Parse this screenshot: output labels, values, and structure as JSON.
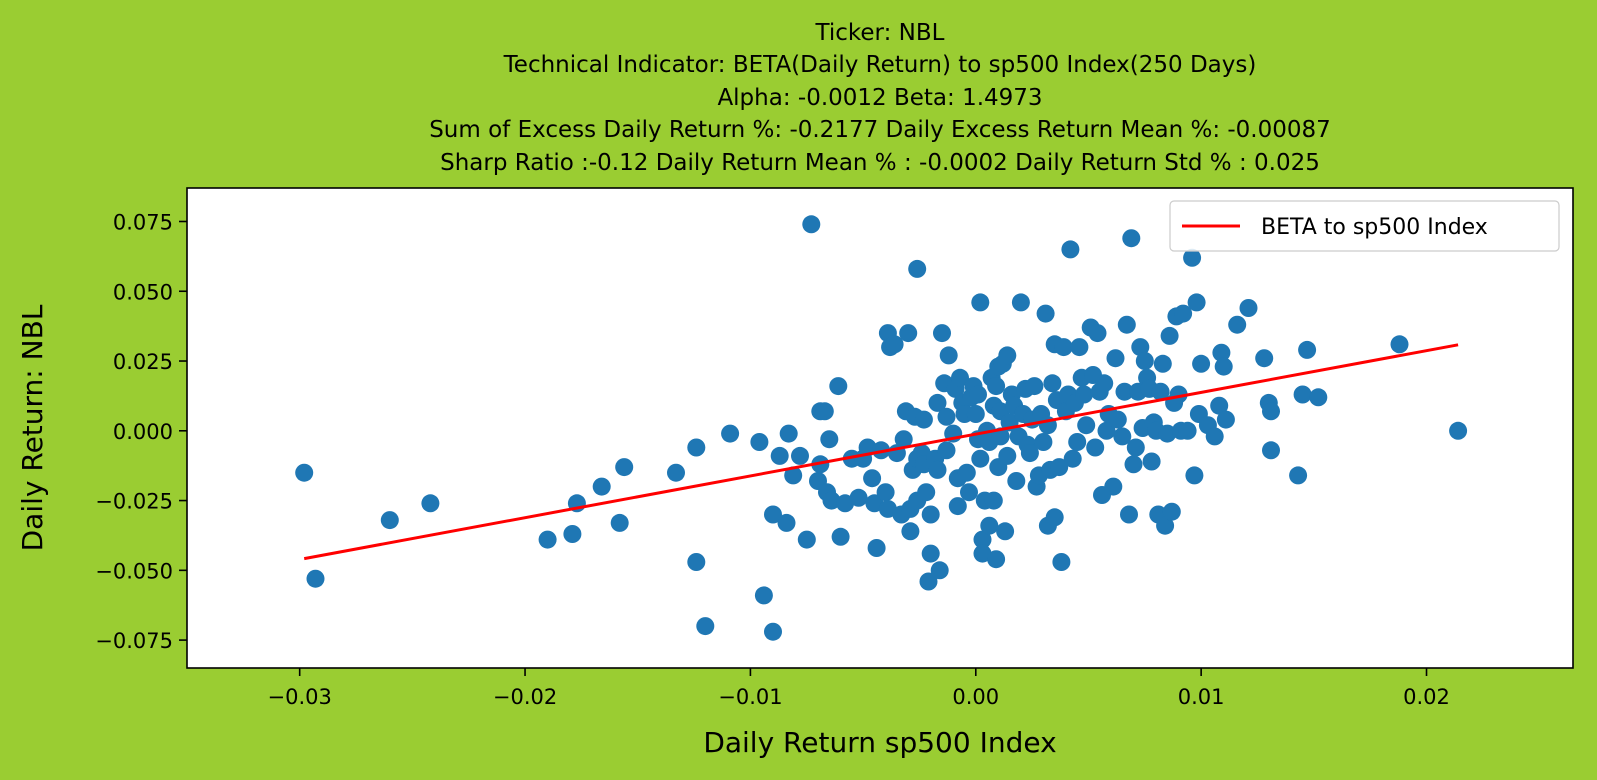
{
  "chart_data": {
    "type": "scatter",
    "title_lines": [
      "Ticker: NBL",
      "Technical Indicator: BETA(Daily Return) to sp500 Index(250 Days)",
      "Alpha: -0.0012   Beta: 1.4973",
      "Sum of Excess Daily Return %: -0.2177   Daily Excess Return Mean %: -0.00087",
      "Sharp Ratio :-0.12    Daily Return Mean % : -0.0002    Daily Return Std % : 0.025"
    ],
    "xlabel": "Daily Return sp500 Index",
    "ylabel": "Daily Return: NBL",
    "xlim": [
      -0.035,
      0.0265
    ],
    "ylim": [
      -0.085,
      0.087
    ],
    "xticks": [
      -0.03,
      -0.02,
      -0.01,
      0.0,
      0.01,
      0.02
    ],
    "xtick_labels": [
      "−0.03",
      "−0.02",
      "−0.01",
      "0.00",
      "0.01",
      "0.02"
    ],
    "yticks": [
      0.075,
      0.05,
      0.025,
      0.0,
      -0.025,
      -0.05,
      -0.075
    ],
    "ytick_labels": [
      "0.075",
      "0.050",
      "0.025",
      "0.000",
      "−0.025",
      "−0.050",
      "−0.075"
    ],
    "legend": {
      "label": "BETA to sp500 Index",
      "position": "upper right"
    },
    "colors": {
      "background": "#9acd32",
      "points": "#1f77b4",
      "line": "#ff0000",
      "plot_area": "#ffffff"
    },
    "scatter_series": {
      "name": "",
      "points": [
        [
          -0.0298,
          -0.015
        ],
        [
          -0.0293,
          -0.053
        ],
        [
          -0.026,
          -0.032
        ],
        [
          -0.0242,
          -0.026
        ],
        [
          -0.019,
          -0.039
        ],
        [
          -0.0179,
          -0.037
        ],
        [
          -0.0177,
          -0.026
        ],
        [
          -0.0166,
          -0.02
        ],
        [
          -0.0158,
          -0.033
        ],
        [
          -0.0156,
          -0.013
        ],
        [
          -0.0133,
          -0.015
        ],
        [
          -0.0124,
          -0.006
        ],
        [
          -0.0124,
          -0.047
        ],
        [
          -0.012,
          -0.07
        ],
        [
          -0.0109,
          -0.001
        ],
        [
          -0.0096,
          -0.004
        ],
        [
          -0.0094,
          -0.059
        ],
        [
          -0.009,
          -0.072
        ],
        [
          -0.009,
          -0.03
        ],
        [
          -0.0087,
          -0.009
        ],
        [
          -0.0084,
          -0.033
        ],
        [
          -0.0083,
          -0.001
        ],
        [
          -0.0081,
          -0.016
        ],
        [
          -0.0078,
          -0.009
        ],
        [
          -0.0075,
          -0.039
        ],
        [
          -0.0073,
          0.074
        ],
        [
          -0.007,
          -0.018
        ],
        [
          -0.0069,
          0.007
        ],
        [
          -0.0069,
          -0.012
        ],
        [
          -0.0067,
          0.007
        ],
        [
          -0.0066,
          -0.022
        ],
        [
          -0.0065,
          -0.003
        ],
        [
          -0.0064,
          -0.025
        ],
        [
          -0.0061,
          0.016
        ],
        [
          -0.006,
          -0.038
        ],
        [
          -0.0058,
          -0.026
        ],
        [
          -0.0055,
          -0.01
        ],
        [
          -0.0052,
          -0.024
        ],
        [
          -0.005,
          -0.01
        ],
        [
          -0.0048,
          -0.006
        ],
        [
          -0.0046,
          -0.017
        ],
        [
          -0.0045,
          -0.026
        ],
        [
          -0.0044,
          -0.042
        ],
        [
          -0.0042,
          -0.007
        ],
        [
          -0.004,
          -0.022
        ],
        [
          -0.0039,
          -0.028
        ],
        [
          -0.0039,
          0.035
        ],
        [
          -0.0038,
          0.03
        ],
        [
          -0.0036,
          0.031
        ],
        [
          -0.0035,
          -0.008
        ],
        [
          -0.0033,
          -0.03
        ],
        [
          -0.0032,
          -0.003
        ],
        [
          -0.0031,
          0.007
        ],
        [
          -0.003,
          0.035
        ],
        [
          -0.0029,
          -0.028
        ],
        [
          -0.0029,
          -0.036
        ],
        [
          -0.0028,
          -0.014
        ],
        [
          -0.0027,
          0.005
        ],
        [
          -0.0026,
          -0.025
        ],
        [
          -0.0026,
          -0.01
        ],
        [
          -0.0026,
          0.058
        ],
        [
          -0.0024,
          -0.008
        ],
        [
          -0.0023,
          -0.012
        ],
        [
          -0.0023,
          0.004
        ],
        [
          -0.0022,
          -0.022
        ],
        [
          -0.0021,
          -0.054
        ],
        [
          -0.002,
          -0.044
        ],
        [
          -0.002,
          -0.03
        ],
        [
          -0.0018,
          -0.01
        ],
        [
          -0.0017,
          0.01
        ],
        [
          -0.0017,
          -0.014
        ],
        [
          -0.0016,
          -0.05
        ],
        [
          -0.0015,
          0.035
        ],
        [
          -0.0014,
          0.017
        ],
        [
          -0.0013,
          0.005
        ],
        [
          -0.0013,
          -0.007
        ],
        [
          -0.0012,
          0.027
        ],
        [
          -0.001,
          -0.001
        ],
        [
          -0.0009,
          0.015
        ],
        [
          -0.0008,
          -0.017
        ],
        [
          -0.0008,
          -0.027
        ],
        [
          -0.0007,
          0.019
        ],
        [
          -0.0006,
          0.01
        ],
        [
          -0.0005,
          0.006
        ],
        [
          -0.0004,
          -0.015
        ],
        [
          -0.0003,
          -0.022
        ],
        [
          -0.0002,
          0.012
        ],
        [
          -0.0001,
          0.016
        ],
        [
          0.0,
          0.006
        ],
        [
          0.0001,
          0.013
        ],
        [
          0.0001,
          -0.003
        ],
        [
          0.0002,
          0.046
        ],
        [
          0.0002,
          -0.01
        ],
        [
          0.0003,
          -0.039
        ],
        [
          0.0003,
          -0.044
        ],
        [
          0.0004,
          -0.025
        ],
        [
          0.0005,
          0.0
        ],
        [
          0.0006,
          -0.034
        ],
        [
          0.0006,
          -0.004
        ],
        [
          0.0007,
          0.019
        ],
        [
          0.0008,
          -0.025
        ],
        [
          0.0008,
          0.009
        ],
        [
          0.0009,
          0.016
        ],
        [
          0.0009,
          -0.046
        ],
        [
          0.001,
          0.023
        ],
        [
          0.001,
          -0.013
        ],
        [
          0.0011,
          0.007
        ],
        [
          0.0011,
          -0.002
        ],
        [
          0.0012,
          0.024
        ],
        [
          0.0013,
          -0.036
        ],
        [
          0.0014,
          0.027
        ],
        [
          0.0014,
          -0.009
        ],
        [
          0.0015,
          0.003
        ],
        [
          0.0016,
          0.013
        ],
        [
          0.0017,
          0.009
        ],
        [
          0.0018,
          -0.018
        ],
        [
          0.0019,
          -0.002
        ],
        [
          0.002,
          0.046
        ],
        [
          0.0021,
          0.006
        ],
        [
          0.0022,
          0.015
        ],
        [
          0.0023,
          -0.005
        ],
        [
          0.0024,
          -0.008
        ],
        [
          0.0025,
          0.004
        ],
        [
          0.0026,
          0.016
        ],
        [
          0.0027,
          -0.02
        ],
        [
          0.0028,
          -0.016
        ],
        [
          0.0029,
          0.006
        ],
        [
          0.003,
          -0.004
        ],
        [
          0.0031,
          0.042
        ],
        [
          0.0032,
          -0.034
        ],
        [
          0.0032,
          0.002
        ],
        [
          0.0033,
          -0.014
        ],
        [
          0.0034,
          0.017
        ],
        [
          0.0035,
          0.031
        ],
        [
          0.0035,
          -0.031
        ],
        [
          0.0036,
          0.011
        ],
        [
          0.0037,
          -0.013
        ],
        [
          0.0038,
          -0.047
        ],
        [
          0.0039,
          0.03
        ],
        [
          0.004,
          0.007
        ],
        [
          0.0041,
          0.013
        ],
        [
          0.0042,
          0.065
        ],
        [
          0.0043,
          -0.01
        ],
        [
          0.0044,
          0.01
        ],
        [
          0.0045,
          -0.004
        ],
        [
          0.0046,
          0.03
        ],
        [
          0.0047,
          0.019
        ],
        [
          0.0048,
          0.013
        ],
        [
          0.0049,
          0.002
        ],
        [
          0.0051,
          0.037
        ],
        [
          0.0052,
          0.02
        ],
        [
          0.0053,
          -0.006
        ],
        [
          0.0054,
          0.035
        ],
        [
          0.0055,
          0.014
        ],
        [
          0.0056,
          -0.023
        ],
        [
          0.0057,
          0.017
        ],
        [
          0.0058,
          0.0
        ],
        [
          0.0059,
          0.006
        ],
        [
          0.0061,
          -0.02
        ],
        [
          0.0062,
          0.026
        ],
        [
          0.0063,
          0.004
        ],
        [
          0.0065,
          -0.002
        ],
        [
          0.0066,
          0.014
        ],
        [
          0.0067,
          0.038
        ],
        [
          0.0068,
          -0.03
        ],
        [
          0.0069,
          0.069
        ],
        [
          0.007,
          -0.012
        ],
        [
          0.0071,
          -0.006
        ],
        [
          0.0072,
          0.014
        ],
        [
          0.0073,
          0.03
        ],
        [
          0.0074,
          0.001
        ],
        [
          0.0075,
          0.025
        ],
        [
          0.0076,
          0.019
        ],
        [
          0.0077,
          0.015
        ],
        [
          0.0078,
          -0.011
        ],
        [
          0.0079,
          0.003
        ],
        [
          0.008,
          0.0
        ],
        [
          0.0081,
          -0.03
        ],
        [
          0.0082,
          0.014
        ],
        [
          0.0083,
          0.024
        ],
        [
          0.0084,
          -0.034
        ],
        [
          0.0085,
          -0.001
        ],
        [
          0.0086,
          0.034
        ],
        [
          0.0087,
          -0.029
        ],
        [
          0.0088,
          0.01
        ],
        [
          0.0089,
          0.041
        ],
        [
          0.009,
          0.013
        ],
        [
          0.0091,
          0.0
        ],
        [
          0.0092,
          0.042
        ],
        [
          0.0094,
          0.0
        ],
        [
          0.0096,
          0.062
        ],
        [
          0.0097,
          -0.016
        ],
        [
          0.0098,
          0.046
        ],
        [
          0.0099,
          0.006
        ],
        [
          0.01,
          0.024
        ],
        [
          0.0103,
          0.002
        ],
        [
          0.0106,
          -0.002
        ],
        [
          0.0108,
          0.009
        ],
        [
          0.0109,
          0.028
        ],
        [
          0.011,
          0.023
        ],
        [
          0.0111,
          0.004
        ],
        [
          0.0116,
          0.038
        ],
        [
          0.0121,
          0.044
        ],
        [
          0.0128,
          0.026
        ],
        [
          0.013,
          0.01
        ],
        [
          0.0131,
          0.007
        ],
        [
          0.0131,
          -0.007
        ],
        [
          0.0143,
          -0.016
        ],
        [
          0.0145,
          0.013
        ],
        [
          0.0147,
          0.029
        ],
        [
          0.0152,
          0.012
        ],
        [
          0.0188,
          0.031
        ],
        [
          0.0214,
          0.0
        ]
      ]
    },
    "regression_line": {
      "name": "BETA to sp500 Index",
      "x": [
        -0.0298,
        0.0214
      ],
      "y": [
        -0.0458,
        0.0308
      ]
    }
  }
}
